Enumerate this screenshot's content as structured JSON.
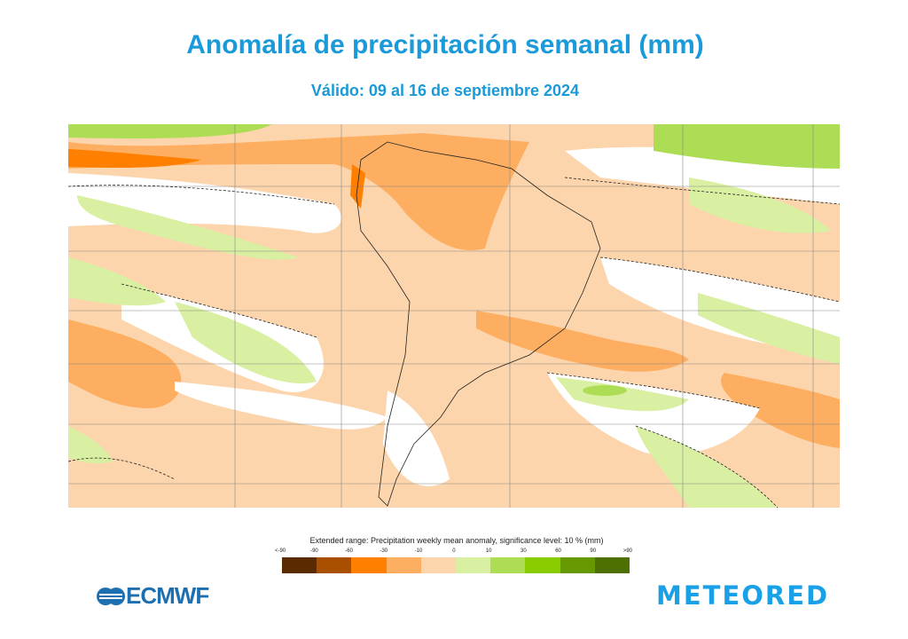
{
  "header": {
    "title": "Anomalía de precipitación semanal (mm)",
    "subtitle": "Válido: 09 al 16 de septiembre 2024"
  },
  "legend": {
    "title": "Extended range: Precipitation weekly mean anomaly, significance level: 10 % (mm)",
    "ticks": [
      "<-90",
      "-90",
      "-60",
      "-30",
      "-10",
      "0",
      "10",
      "30",
      "60",
      "90",
      ">90"
    ],
    "colors": [
      "#5a2a00",
      "#a84f00",
      "#ff8000",
      "#fdae60",
      "#fdd5ac",
      "#d9f0a3",
      "#addd55",
      "#88cc00",
      "#669900",
      "#4d7000"
    ]
  },
  "logos": {
    "left": "ECMWF",
    "right": "METEORED"
  }
}
